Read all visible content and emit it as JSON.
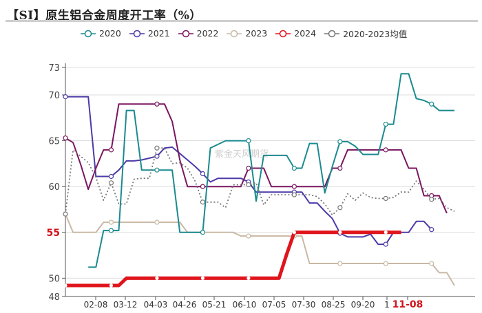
{
  "title": "【SI】原生铝合金周度开工率（%）",
  "watermark": "紫金天风期货",
  "legend": [
    {
      "label": "2020",
      "color": "#1a8a8f"
    },
    {
      "label": "2021",
      "color": "#4b3aa8"
    },
    {
      "label": "2022",
      "color": "#7a1560"
    },
    {
      "label": "2023",
      "color": "#c9b8a4"
    },
    {
      "label": "2024",
      "color": "#e0141c"
    },
    {
      "label": "2020-2023均值",
      "color": "#777777"
    }
  ],
  "chart_data": {
    "type": "line",
    "title": "【SI】原生铝合金周度开工率（%）",
    "xlabel": "",
    "ylabel": "",
    "ylim": [
      48,
      73
    ],
    "yticks": [
      48,
      50,
      55,
      60,
      65,
      70,
      73
    ],
    "highlight_ytick": 55,
    "xticks": [
      "02-08",
      "03-12",
      "04-03",
      "04-26",
      "05-21",
      "06-10",
      "07-05",
      "07-30",
      "08-25",
      "09-20",
      "1",
      "11-08"
    ],
    "highlight_xtick": "11-08",
    "grid": true,
    "legend_position": "top",
    "x_points": 52,
    "series": [
      {
        "name": "2020",
        "color": "#1a8a8f",
        "width": 2,
        "dash": "",
        "start": 3,
        "values": [
          null,
          null,
          null,
          51.2,
          51.2,
          55.2,
          55.2,
          55.2,
          68.3,
          68.3,
          61.8,
          61.8,
          61.8,
          61.8,
          61.8,
          55.0,
          55.0,
          55.0,
          55.0,
          64.2,
          64.6,
          65.0,
          65.0,
          65.0,
          65.0,
          58.4,
          63.4,
          63.4,
          63.4,
          63.4,
          62.0,
          62.0,
          64.7,
          64.7,
          59.3,
          62.2,
          64.9,
          64.9,
          64.4,
          63.5,
          63.5,
          63.5,
          66.8,
          66.8,
          72.3,
          72.3,
          69.6,
          69.4,
          69.0,
          68.3,
          68.3,
          68.3
        ]
      },
      {
        "name": "2021",
        "color": "#4b3aa8",
        "width": 2,
        "dash": "",
        "values": [
          69.8,
          69.8,
          69.8,
          69.8,
          61.1,
          61.1,
          61.1,
          61.8,
          62.8,
          62.8,
          62.9,
          63.1,
          63.3,
          64.2,
          64.3,
          63.6,
          62.9,
          62.2,
          61.4,
          60.5,
          60.9,
          60.9,
          60.9,
          60.9,
          60.5,
          59.4,
          59.4,
          59.4,
          59.4,
          59.4,
          59.4,
          59.4,
          58.2,
          58.2,
          57.3,
          56.5,
          54.9,
          54.5,
          54.5,
          54.5,
          54.8,
          53.7,
          53.7,
          55.0,
          55.0,
          55.0,
          56.2,
          56.2,
          55.3,
          null,
          null,
          null
        ]
      },
      {
        "name": "2022",
        "color": "#7a1560",
        "width": 2,
        "dash": "",
        "values": [
          65.3,
          64.8,
          62.4,
          59.7,
          62.0,
          64.0,
          64.0,
          69.0,
          69.0,
          69.0,
          69.0,
          69.0,
          69.0,
          69.0,
          67.1,
          62.9,
          60.0,
          60.0,
          60.0,
          60.0,
          60.0,
          60.0,
          60.0,
          60.0,
          62.0,
          62.0,
          62.0,
          60.0,
          60.0,
          60.0,
          60.0,
          60.0,
          60.0,
          60.0,
          60.0,
          62.0,
          62.0,
          64.0,
          64.0,
          64.0,
          64.0,
          64.0,
          64.0,
          64.0,
          64.0,
          62.0,
          62.0,
          59.0,
          59.0,
          59.0,
          57.1,
          null
        ]
      },
      {
        "name": "2023",
        "color": "#c9b8a4",
        "width": 2,
        "dash": "",
        "values": [
          57.0,
          55.0,
          55.0,
          55.0,
          55.0,
          56.1,
          56.1,
          56.1,
          56.1,
          56.1,
          56.1,
          56.1,
          56.1,
          56.1,
          56.1,
          56.1,
          55.0,
          55.0,
          55.0,
          55.0,
          55.0,
          55.0,
          55.0,
          54.6,
          54.6,
          54.6,
          54.6,
          54.6,
          54.6,
          54.6,
          54.6,
          54.6,
          51.6,
          51.6,
          51.6,
          51.6,
          51.6,
          51.6,
          51.6,
          51.6,
          51.6,
          51.6,
          51.6,
          51.6,
          51.6,
          51.6,
          51.6,
          51.6,
          51.6,
          50.6,
          50.6,
          49.2
        ]
      },
      {
        "name": "2024",
        "color": "#e0141c",
        "width": 5,
        "dash": "",
        "values": [
          49.2,
          49.2,
          49.2,
          49.2,
          49.2,
          49.2,
          49.2,
          49.2,
          50.0,
          50.0,
          50.0,
          50.0,
          50.0,
          50.0,
          50.0,
          50.0,
          50.0,
          50.0,
          50.0,
          50.0,
          50.0,
          50.0,
          50.0,
          50.0,
          50.0,
          50.0,
          50.0,
          50.0,
          50.0,
          52.6,
          55.0,
          55.0,
          55.0,
          55.0,
          55.0,
          55.0,
          55.0,
          55.0,
          55.0,
          55.0,
          55.0,
          55.0,
          55.0,
          55.0,
          55.0,
          null,
          null,
          null,
          null,
          null,
          null,
          null
        ]
      },
      {
        "name": "2020-2023均值",
        "color": "#777777",
        "width": 1.8,
        "dash": "2,3",
        "values": [
          57.0,
          64.0,
          63.3,
          62.6,
          61.0,
          58.5,
          60.4,
          58.1,
          58.1,
          60.8,
          60.9,
          60.9,
          64.2,
          64.2,
          62.5,
          62.6,
          62.0,
          60.6,
          58.3,
          58.3,
          58.3,
          57.7,
          60.2,
          60.2,
          60.2,
          60.4,
          58.0,
          59.1,
          59.1,
          59.1,
          59.1,
          59.1,
          59.1,
          58.9,
          58.1,
          56.9,
          57.7,
          59.2,
          58.5,
          59.3,
          58.8,
          58.7,
          58.7,
          58.8,
          59.4,
          59.4,
          60.6,
          59.7,
          58.6,
          58.7,
          57.7,
          57.3
        ]
      }
    ]
  }
}
